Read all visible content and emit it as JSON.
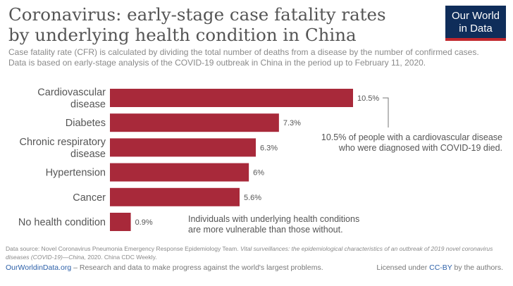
{
  "header": {
    "title_line1": "Coronavirus: early-stage case fatality rates",
    "title_line2": "by underlying health condition in China",
    "subtitle_line1": "Case fatality rate (CFR) is calculated by dividing the total number of deaths from a disease by the number of confirmed cases.",
    "subtitle_line2": "Data is based on early-stage analysis of the COVID-19 outbreak in China in the period up to February 11, 2020."
  },
  "logo": {
    "line1": "Our World",
    "line2": "in Data",
    "bg_color": "#0f2d5a",
    "accent_color": "#c1272d"
  },
  "chart_data": {
    "type": "bar",
    "orientation": "horizontal",
    "bar_color": "#a8293a",
    "categories": [
      [
        "Cardiovascular",
        "disease"
      ],
      [
        "Diabetes"
      ],
      [
        "Chronic respiratory",
        "disease"
      ],
      [
        "Hypertension"
      ],
      [
        "Cancer"
      ],
      [
        "No health condition"
      ]
    ],
    "values": [
      10.5,
      7.3,
      6.3,
      6,
      5.6,
      0.9
    ],
    "value_labels": [
      "10.5%",
      "7.3%",
      "6.3%",
      "6%",
      "5.6%",
      "0.9%"
    ],
    "annotations": [
      {
        "lines": [
          "10.5% of people with a cardiovascular disease",
          "who were diagnosed with COVID-19 died."
        ],
        "points_to": "Cardiovascular disease"
      },
      {
        "lines": [
          "Individuals with underlying health conditions",
          "are more vulnerable than those without."
        ]
      }
    ]
  },
  "footer": {
    "source_prefix": "Data source: Novel Coronavirus Pneumonia Emergency Response Epidemiology Team. ",
    "source_italic": "Vital surveillances: the epidemiological characteristics of an outbreak of 2019 novel coronavirus diseases (COVID-19)—China,",
    "source_suffix": " 2020. China CDC Weekly.",
    "site": "OurWorldinData.org",
    "tagline": " – Research and data to make progress against the world's largest problems.",
    "license_prefix": "Licensed under ",
    "license_cc": "CC-BY",
    "license_suffix": " by the authors."
  }
}
